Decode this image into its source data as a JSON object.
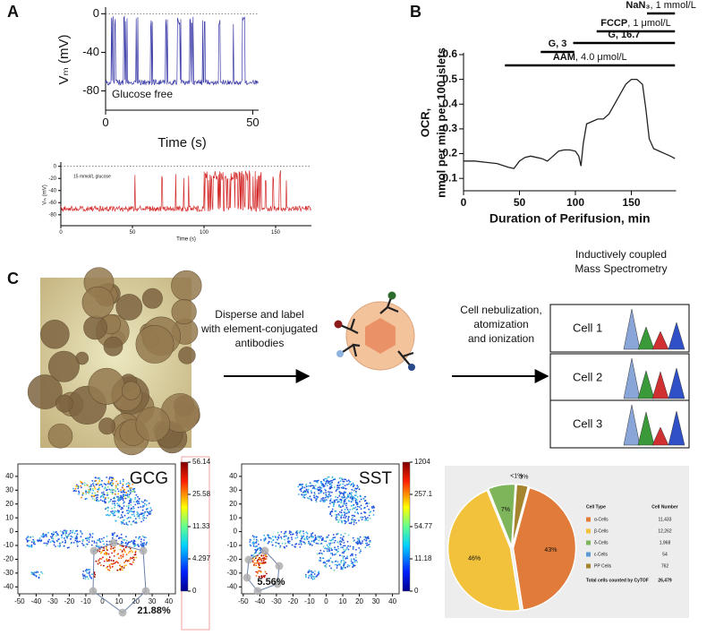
{
  "panel_labels": [
    "A",
    "B",
    "C"
  ],
  "chart_data": [
    {
      "type": "line",
      "y_label": "Vₘ (mV)",
      "x_label": "Time (s)",
      "annotation": "Glucose free",
      "xlim": [
        0,
        52
      ],
      "xticks": [
        0,
        50
      ],
      "ylim": [
        -100,
        5
      ],
      "yticks": [
        0,
        -40,
        -80
      ],
      "color": "#3c3ca8"
    },
    {
      "type": "line",
      "y_label": "Vₘ (mV)",
      "x_label": "Time (s)",
      "annotation": "15 mmol/L glucose",
      "xlim": [
        0,
        175
      ],
      "xticks": [
        0,
        50,
        100,
        150
      ],
      "ylim": [
        -98,
        4
      ],
      "yticks": [
        0,
        -20,
        -40,
        -60,
        -80
      ],
      "color": "#d42a2a"
    },
    {
      "type": "line",
      "y_label": [
        "OCR,",
        "nmol per min per 100 islets"
      ],
      "x_label": "Duration of Perifusion, min",
      "xlim": [
        0,
        190
      ],
      "xticks": [
        0,
        50,
        100,
        150
      ],
      "ylim": [
        0.05,
        0.6
      ],
      "yticks": [
        0.1,
        0.2,
        0.3,
        0.4,
        0.5,
        0.6
      ],
      "x": [
        0,
        10,
        20,
        30,
        40,
        45,
        50,
        55,
        60,
        65,
        70,
        75,
        80,
        85,
        90,
        95,
        100,
        103,
        105,
        107,
        110,
        115,
        120,
        125,
        130,
        135,
        140,
        145,
        150,
        155,
        160,
        163,
        166,
        170,
        175,
        180,
        185,
        189
      ],
      "series": [
        {
          "color": "#222222",
          "values": [
            0.17,
            0.17,
            0.165,
            0.16,
            0.145,
            0.14,
            0.17,
            0.185,
            0.19,
            0.185,
            0.18,
            0.17,
            0.19,
            0.21,
            0.215,
            0.215,
            0.21,
            0.19,
            0.15,
            0.24,
            0.32,
            0.33,
            0.34,
            0.34,
            0.36,
            0.4,
            0.44,
            0.48,
            0.5,
            0.5,
            0.48,
            0.38,
            0.26,
            0.22,
            0.21,
            0.2,
            0.19,
            0.18
          ]
        }
      ],
      "treatments": [
        {
          "name": "AAM",
          "detail": ", 4.0 μmol/L",
          "start": 37,
          "end": 189
        },
        {
          "name": "G, 3",
          "start": 69,
          "end": 99
        },
        {
          "name": "G, 16.7",
          "start": 98,
          "end": 189
        },
        {
          "name": "FCCP",
          "detail": ", 1 μmol/L",
          "start": 119,
          "end": 189
        },
        {
          "name": "NaN₃",
          "detail": ", 1 mmol/L",
          "start": 164,
          "end": 189
        }
      ]
    },
    {
      "type": "scatter",
      "title": "GCG",
      "xlim": [
        -51,
        44
      ],
      "xticks": [
        -50,
        -40,
        -30,
        -20,
        -10,
        0,
        10,
        20,
        30,
        40
      ],
      "ylim": [
        -45,
        49
      ],
      "yticks": [
        40,
        30,
        20,
        10,
        0,
        -10,
        -20,
        -30,
        -40
      ],
      "colorbar_ticks": [
        56.14,
        25.58,
        11.33,
        4.297,
        0
      ],
      "gate_label": "21.88%"
    },
    {
      "type": "scatter",
      "title": "SST",
      "xlim": [
        -51,
        44
      ],
      "xticks": [
        -50,
        -40,
        -30,
        -20,
        -10,
        0,
        10,
        20,
        30,
        40
      ],
      "ylim": [
        -45,
        49
      ],
      "yticks": [
        40,
        30,
        20,
        10,
        0,
        -10,
        -20,
        -30,
        -40
      ],
      "colorbar_ticks": [
        1204,
        257.1,
        54.77,
        11.18,
        0
      ],
      "gate_label": "5.56%"
    },
    {
      "type": "pie",
      "categories": [
        "α-Cells",
        "β-Cells",
        "δ-Cells",
        "ε-Cells",
        "PP Cells"
      ],
      "values": [
        43,
        46,
        7,
        0.2,
        3
      ],
      "value_labels": [
        "43%",
        "46%",
        "7%",
        "<1%",
        "3%"
      ],
      "colors": [
        "#e07b39",
        "#f2c23c",
        "#7fb55a",
        "#5b9bd5",
        "#a5842d"
      ],
      "table": {
        "headers": [
          "Cell Type",
          "Cell Number"
        ],
        "counts": [
          "11,433",
          "12,262",
          "1,968",
          "54",
          "762"
        ],
        "total_label": "Total cells counted by CyTOF",
        "total": "26,479"
      }
    }
  ],
  "workflow": {
    "step1": [
      "Disperse and label",
      "with element-conjugated",
      "antibodies"
    ],
    "step2": [
      "Cell nebulization,",
      "atomization",
      "and ionization"
    ],
    "instrument": [
      "Inductively coupled",
      "Mass Spectrometry"
    ],
    "cells": [
      "Cell 1",
      "Cell 2",
      "Cell 3"
    ]
  }
}
